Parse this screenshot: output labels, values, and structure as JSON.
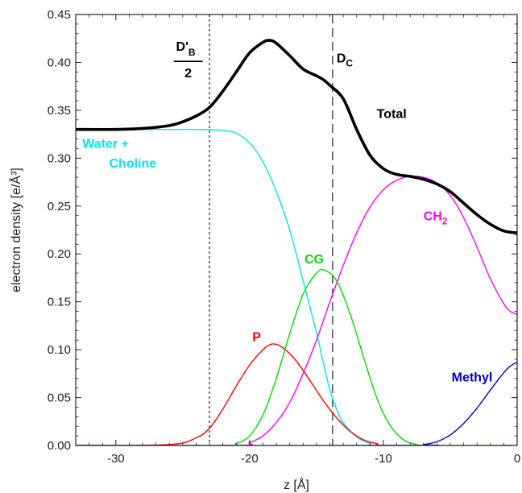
{
  "chart_data": {
    "type": "line",
    "title": "",
    "xlabel": "z [Å]",
    "ylabel": "electron density [e/Å³]",
    "xlim": [
      -33,
      0
    ],
    "ylim": [
      0,
      0.45
    ],
    "x_ticks": [
      -30,
      -20,
      -10,
      0
    ],
    "y_ticks": [
      0.0,
      0.05,
      0.1,
      0.15,
      0.2,
      0.25,
      0.3,
      0.35,
      0.4,
      0.45
    ],
    "y_tick_labels": [
      "0.00",
      "0.05",
      "0.10",
      "0.15",
      "0.20",
      "0.25",
      "0.30",
      "0.35",
      "0.40",
      "0.45"
    ],
    "grid": false,
    "legend": "none",
    "series": [
      {
        "name": "Total",
        "color": "#000000",
        "points": [
          [
            -33,
            0.33
          ],
          [
            -30,
            0.33
          ],
          [
            -28,
            0.331
          ],
          [
            -26,
            0.334
          ],
          [
            -25,
            0.338
          ],
          [
            -24,
            0.344
          ],
          [
            -23,
            0.353
          ],
          [
            -22,
            0.37
          ],
          [
            -21,
            0.39
          ],
          [
            -20,
            0.41
          ],
          [
            -19,
            0.421
          ],
          [
            -18.5,
            0.423
          ],
          [
            -18,
            0.42
          ],
          [
            -17,
            0.407
          ],
          [
            -16,
            0.393
          ],
          [
            -15,
            0.386
          ],
          [
            -14.5,
            0.382
          ],
          [
            -14,
            0.376
          ],
          [
            -13,
            0.362
          ],
          [
            -12,
            0.33
          ],
          [
            -11,
            0.303
          ],
          [
            -10,
            0.289
          ],
          [
            -9,
            0.283
          ],
          [
            -8,
            0.281
          ],
          [
            -7,
            0.278
          ],
          [
            -6,
            0.273
          ],
          [
            -5,
            0.265
          ],
          [
            -4,
            0.253
          ],
          [
            -3,
            0.241
          ],
          [
            -2,
            0.231
          ],
          [
            -1,
            0.224
          ],
          [
            0,
            0.222
          ]
        ]
      },
      {
        "name": "Water + Choline",
        "color": "#00e5ee",
        "points": [
          [
            -33,
            0.33
          ],
          [
            -26,
            0.33
          ],
          [
            -24,
            0.33
          ],
          [
            -22,
            0.329
          ],
          [
            -21,
            0.326
          ],
          [
            -20,
            0.316
          ],
          [
            -19,
            0.296
          ],
          [
            -18,
            0.265
          ],
          [
            -17,
            0.225
          ],
          [
            -16,
            0.172
          ],
          [
            -15,
            0.118
          ],
          [
            -14.5,
            0.087
          ],
          [
            -14,
            0.058
          ],
          [
            -13.5,
            0.038
          ],
          [
            -13,
            0.024
          ],
          [
            -12,
            0.009
          ],
          [
            -11,
            0.002
          ],
          [
            -10,
            0.0
          ],
          [
            0,
            0.0
          ]
        ]
      },
      {
        "name": "P",
        "color": "#ff0000",
        "points": [
          [
            -33,
            0
          ],
          [
            -26,
            0.001
          ],
          [
            -24,
            0.008
          ],
          [
            -23,
            0.018
          ],
          [
            -22,
            0.038
          ],
          [
            -21,
            0.062
          ],
          [
            -20,
            0.084
          ],
          [
            -19,
            0.1
          ],
          [
            -18.3,
            0.106
          ],
          [
            -17.5,
            0.102
          ],
          [
            -16.5,
            0.088
          ],
          [
            -15.5,
            0.068
          ],
          [
            -14.5,
            0.047
          ],
          [
            -13.5,
            0.029
          ],
          [
            -12.5,
            0.015
          ],
          [
            -11.5,
            0.006
          ],
          [
            -10.5,
            0.002
          ],
          [
            -9.5,
            0.0
          ],
          [
            0,
            0.0
          ]
        ]
      },
      {
        "name": "CG",
        "color": "#00dd00",
        "points": [
          [
            -33,
            0
          ],
          [
            -22,
            0
          ],
          [
            -21,
            0.002
          ],
          [
            -20,
            0.01
          ],
          [
            -19,
            0.032
          ],
          [
            -18,
            0.07
          ],
          [
            -17,
            0.117
          ],
          [
            -16,
            0.158
          ],
          [
            -15,
            0.18
          ],
          [
            -14.4,
            0.183
          ],
          [
            -13.5,
            0.172
          ],
          [
            -12.5,
            0.138
          ],
          [
            -11.5,
            0.093
          ],
          [
            -10.5,
            0.05
          ],
          [
            -9.5,
            0.021
          ],
          [
            -8.5,
            0.006
          ],
          [
            -7.5,
            0.001
          ],
          [
            -6.5,
            0.0
          ],
          [
            0,
            0.0
          ]
        ]
      },
      {
        "name": "CH₂",
        "color": "#ff00ff",
        "points": [
          [
            -33,
            0
          ],
          [
            -21,
            0
          ],
          [
            -20,
            0.003
          ],
          [
            -19,
            0.01
          ],
          [
            -18,
            0.024
          ],
          [
            -17,
            0.045
          ],
          [
            -16,
            0.075
          ],
          [
            -15,
            0.11
          ],
          [
            -14,
            0.15
          ],
          [
            -13,
            0.188
          ],
          [
            -12,
            0.222
          ],
          [
            -11,
            0.249
          ],
          [
            -10,
            0.267
          ],
          [
            -9,
            0.277
          ],
          [
            -8,
            0.281
          ],
          [
            -7,
            0.28
          ],
          [
            -6,
            0.274
          ],
          [
            -5,
            0.261
          ],
          [
            -4,
            0.238
          ],
          [
            -3,
            0.207
          ],
          [
            -2,
            0.174
          ],
          [
            -1,
            0.148
          ],
          [
            -0.5,
            0.14
          ],
          [
            0,
            0.137
          ]
        ]
      },
      {
        "name": "Methyl",
        "color": "#0000bb",
        "points": [
          [
            -33,
            0
          ],
          [
            -8,
            0
          ],
          [
            -7,
            0.001
          ],
          [
            -6,
            0.004
          ],
          [
            -5,
            0.011
          ],
          [
            -4,
            0.023
          ],
          [
            -3,
            0.039
          ],
          [
            -2,
            0.058
          ],
          [
            -1,
            0.076
          ],
          [
            -0.5,
            0.083
          ],
          [
            0,
            0.087
          ]
        ]
      }
    ],
    "reference_lines": [
      {
        "x": -23,
        "style": "dotted",
        "color": "#333333"
      },
      {
        "x": -13.8,
        "style": "dashed",
        "color": "#333333"
      }
    ],
    "annotations": [
      {
        "text": "Total",
        "x": -10.5,
        "y": 0.342,
        "color": "#000000"
      },
      {
        "text": "Water +",
        "x": -32.5,
        "y": 0.311,
        "color": "#00e5ee"
      },
      {
        "text": "Choline",
        "x": -30.5,
        "y": 0.29,
        "color": "#00e5ee"
      },
      {
        "text": "P",
        "x": -19.8,
        "y": 0.109,
        "color": "#ff0000"
      },
      {
        "text": "CG",
        "x": -15.9,
        "y": 0.19,
        "color": "#00dd00"
      },
      {
        "text": "CH",
        "sub": "2",
        "x": -7.0,
        "y": 0.235,
        "color": "#ff00ff"
      },
      {
        "text": "Methyl",
        "x": -4.9,
        "y": 0.067,
        "color": "#0000bb"
      },
      {
        "text": "D",
        "sub": "C",
        "x": -13.5,
        "y": 0.4,
        "color": "#000000"
      },
      {
        "text": "D'",
        "sub": "B",
        "denominator": "2",
        "x": -25.5,
        "y": 0.412,
        "color": "#000000"
      }
    ]
  }
}
